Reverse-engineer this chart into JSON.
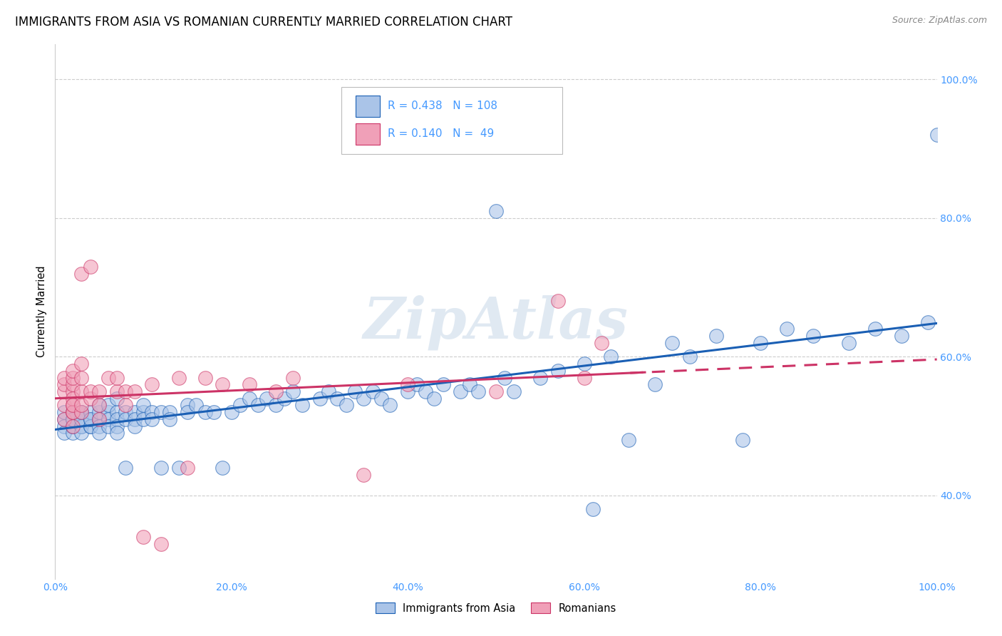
{
  "title": "IMMIGRANTS FROM ASIA VS ROMANIAN CURRENTLY MARRIED CORRELATION CHART",
  "source": "Source: ZipAtlas.com",
  "ylabel": "Currently Married",
  "xlabel": "",
  "watermark": "ZipAtlas",
  "legend_labels": [
    "Immigrants from Asia",
    "Romanians"
  ],
  "blue_R": 0.438,
  "blue_N": 108,
  "pink_R": 0.14,
  "pink_N": 49,
  "blue_color": "#aac4e8",
  "pink_color": "#f0a0b8",
  "blue_line_color": "#1a5fb4",
  "pink_line_color": "#cc3366",
  "title_fontsize": 12,
  "source_fontsize": 9,
  "axis_label_color": "#4499ff",
  "background_color": "#ffffff",
  "xlim": [
    0,
    1
  ],
  "ylim_min": 0.28,
  "ylim_max": 1.05,
  "xtick_vals": [
    0.0,
    0.2,
    0.4,
    0.6,
    0.8,
    1.0
  ],
  "xtick_labels": [
    "0.0%",
    "20.0%",
    "40.0%",
    "60.0%",
    "80.0%",
    "100.0%"
  ],
  "ytick_vals": [
    0.4,
    0.6,
    0.8,
    1.0
  ],
  "ytick_labels": [
    "40.0%",
    "60.0%",
    "80.0%",
    "100.0%"
  ],
  "blue_x": [
    0.01,
    0.01,
    0.01,
    0.01,
    0.02,
    0.02,
    0.02,
    0.02,
    0.02,
    0.02,
    0.02,
    0.02,
    0.03,
    0.03,
    0.03,
    0.03,
    0.03,
    0.03,
    0.03,
    0.04,
    0.04,
    0.04,
    0.04,
    0.04,
    0.05,
    0.05,
    0.05,
    0.05,
    0.05,
    0.06,
    0.06,
    0.06,
    0.06,
    0.07,
    0.07,
    0.07,
    0.07,
    0.07,
    0.08,
    0.08,
    0.08,
    0.09,
    0.09,
    0.09,
    0.1,
    0.1,
    0.1,
    0.11,
    0.11,
    0.12,
    0.12,
    0.13,
    0.13,
    0.14,
    0.15,
    0.15,
    0.16,
    0.17,
    0.18,
    0.19,
    0.2,
    0.21,
    0.22,
    0.23,
    0.24,
    0.25,
    0.26,
    0.27,
    0.28,
    0.3,
    0.31,
    0.32,
    0.33,
    0.34,
    0.35,
    0.36,
    0.37,
    0.38,
    0.4,
    0.41,
    0.42,
    0.43,
    0.44,
    0.46,
    0.47,
    0.48,
    0.5,
    0.51,
    0.52,
    0.55,
    0.57,
    0.6,
    0.61,
    0.63,
    0.65,
    0.68,
    0.7,
    0.72,
    0.75,
    0.78,
    0.8,
    0.83,
    0.86,
    0.9,
    0.93,
    0.96,
    0.99,
    1.0
  ],
  "blue_y": [
    0.51,
    0.52,
    0.5,
    0.49,
    0.51,
    0.52,
    0.5,
    0.49,
    0.5,
    0.51,
    0.52,
    0.51,
    0.5,
    0.51,
    0.52,
    0.5,
    0.49,
    0.51,
    0.52,
    0.5,
    0.51,
    0.52,
    0.5,
    0.51,
    0.51,
    0.52,
    0.5,
    0.53,
    0.49,
    0.52,
    0.51,
    0.5,
    0.53,
    0.52,
    0.51,
    0.5,
    0.54,
    0.49,
    0.52,
    0.51,
    0.44,
    0.52,
    0.51,
    0.5,
    0.52,
    0.51,
    0.53,
    0.52,
    0.51,
    0.52,
    0.44,
    0.52,
    0.51,
    0.44,
    0.53,
    0.52,
    0.53,
    0.52,
    0.52,
    0.44,
    0.52,
    0.53,
    0.54,
    0.53,
    0.54,
    0.53,
    0.54,
    0.55,
    0.53,
    0.54,
    0.55,
    0.54,
    0.53,
    0.55,
    0.54,
    0.55,
    0.54,
    0.53,
    0.55,
    0.56,
    0.55,
    0.54,
    0.56,
    0.55,
    0.56,
    0.55,
    0.81,
    0.57,
    0.55,
    0.57,
    0.58,
    0.59,
    0.38,
    0.6,
    0.48,
    0.56,
    0.62,
    0.6,
    0.63,
    0.48,
    0.62,
    0.64,
    0.63,
    0.62,
    0.64,
    0.63,
    0.65,
    0.92
  ],
  "pink_x": [
    0.01,
    0.01,
    0.01,
    0.01,
    0.01,
    0.02,
    0.02,
    0.02,
    0.02,
    0.02,
    0.02,
    0.02,
    0.02,
    0.02,
    0.02,
    0.03,
    0.03,
    0.03,
    0.03,
    0.03,
    0.03,
    0.04,
    0.04,
    0.04,
    0.05,
    0.05,
    0.05,
    0.06,
    0.07,
    0.07,
    0.08,
    0.08,
    0.09,
    0.1,
    0.11,
    0.12,
    0.14,
    0.15,
    0.17,
    0.19,
    0.22,
    0.25,
    0.27,
    0.35,
    0.4,
    0.5,
    0.57,
    0.6,
    0.62
  ],
  "pink_y": [
    0.51,
    0.53,
    0.55,
    0.56,
    0.57,
    0.5,
    0.52,
    0.53,
    0.55,
    0.56,
    0.57,
    0.58,
    0.52,
    0.54,
    0.53,
    0.52,
    0.53,
    0.55,
    0.57,
    0.59,
    0.72,
    0.54,
    0.55,
    0.73,
    0.53,
    0.55,
    0.51,
    0.57,
    0.55,
    0.57,
    0.55,
    0.53,
    0.55,
    0.34,
    0.56,
    0.33,
    0.57,
    0.44,
    0.57,
    0.56,
    0.56,
    0.55,
    0.57,
    0.43,
    0.56,
    0.55,
    0.68,
    0.57,
    0.62
  ]
}
